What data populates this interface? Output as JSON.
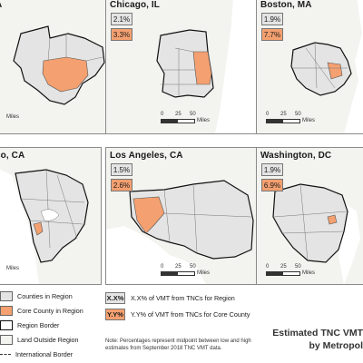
{
  "panels": {
    "top_left": {
      "title": "A",
      "scale": "Miles"
    },
    "chicago": {
      "title": "Chicago, IL",
      "region_pct": "2.1%",
      "core_pct": "3.3%",
      "scale_ticks": [
        "0",
        "25",
        "50"
      ],
      "scale_unit": "Miles"
    },
    "boston": {
      "title": "Boston, MA",
      "region_pct": "1.9%",
      "core_pct": "7.7%",
      "scale_ticks": [
        "0",
        "25",
        "50"
      ],
      "scale_unit": "Miles"
    },
    "sf": {
      "title": "co, CA",
      "scale": "Miles"
    },
    "los_angeles": {
      "title": "Los Angeles, CA",
      "region_pct": "1.5%",
      "core_pct": "2.6%",
      "scale_ticks": [
        "0",
        "25",
        "50"
      ],
      "scale_unit": "Miles"
    },
    "washington": {
      "title": "Washington, DC",
      "region_pct": "1.9%",
      "core_pct": "6.9%",
      "scale_ticks": [
        "0",
        "25",
        "50"
      ],
      "scale_unit": "Miles"
    }
  },
  "legend": {
    "items": [
      {
        "label": "Counties in Region",
        "kind": "region"
      },
      {
        "label": "Core County in Region",
        "kind": "core"
      },
      {
        "label": "Region Border",
        "kind": "border"
      },
      {
        "label": "Land Outside Region",
        "kind": "outside"
      },
      {
        "label": "International Border",
        "kind": "intl"
      }
    ]
  },
  "key": {
    "region_box": "X.X%",
    "region_text": "X.X% of VMT from TNCs for Region",
    "core_box": "Y.Y%",
    "core_text": "Y.Y% of VMT from TNCs for Core County",
    "note": "Note: Percentages represent midpoint between low and high estimates from September 2018 TNC VMT data."
  },
  "title": {
    "line1": "Estimated TNC VMT",
    "line2": "by Metropol"
  },
  "colors": {
    "region": "#e4e4e4",
    "core": "#f4a070",
    "outside": "#f3f3f0",
    "border": "#111111",
    "water": "#ffffff"
  }
}
